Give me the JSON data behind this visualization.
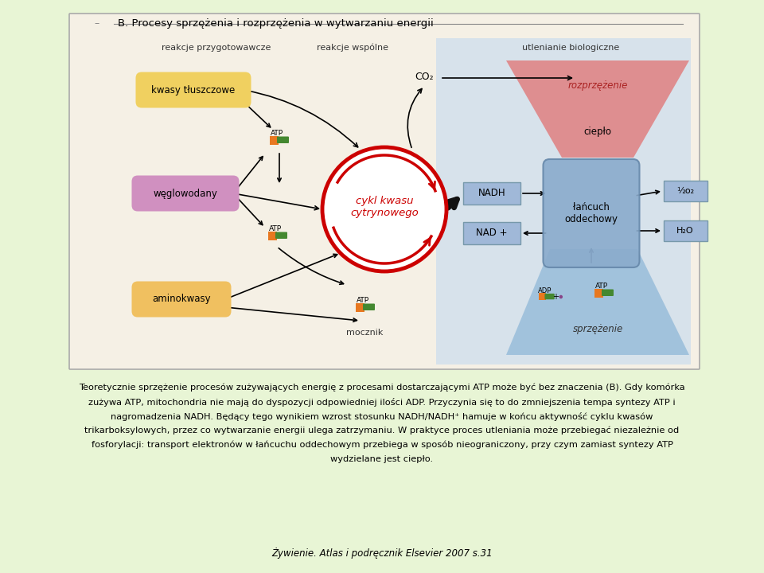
{
  "bg_color": "#e8f5d5",
  "diagram_bg": "#f5f0e8",
  "diagram_border": "#999999",
  "title_text": "B. Procesy sprzężenia i rozprzężenia w wytwarzaniu energii",
  "col1_label": "reakcje przygotowawcze",
  "col2_label": "reakcje wspólne",
  "col3_label": "utlenianie biologiczne",
  "box_kwasy": "kwasy tłuszczowe",
  "box_weglowodany": "węglowodany",
  "box_aminokwasy": "aminokwasy",
  "box_cykl": "cykl kwasu\ncytrynowego",
  "box_nadh": "NADH",
  "box_nad": "NAD +",
  "box_lancuch": "łańcuch\noddechowy",
  "box_o2": "½o₂",
  "box_h2o": "H₂O",
  "text_co2": "CO₂",
  "text_atp": "ATP",
  "text_adp": "ADP",
  "text_mocznik": "mocznik",
  "text_rozprzezenie": "rozprzężenie",
  "text_cieplo": "ciepło",
  "text_sprzezenie": "sprzężenie",
  "para_line1": "Teoretycznie sprzężenie procesów zużywających energię z procesami dostarczającymi ATP może być bez znaczenia (B). Gdy komórka",
  "para_line2": "zużywa ATP, mitochondria nie mają do dyspozycji odpowiedniej ilości ADP. Przyczynia się to do zmniejszenia tempa syntezy ATP i",
  "para_line3": "nagromadzenia NADH. Będący tego wynikiem wzrost stosunku NADH/NADH⁺ hamuje w końcu aktywność cyklu kwasów",
  "para_line4": "trikarboksylowych, przez co wytwarzanie energii ulega zatrzymaniu. W praktyce proces utleniania może przebiegać niezależnie od",
  "para_line5": "fosforylacji: transport elektronów w łańcuchu oddechowym przebiega w sposób nieograniczony, przy czym zamiast syntezy ATP",
  "para_line6": "wydzielane jest ciepło.",
  "footer_text": "Żywienie. Atlas i podręcznik Elsevier 2007 s.31",
  "kwasy_color": "#f0d060",
  "weglowodany_color": "#d090c0",
  "aminokwasy_color": "#f0c060",
  "cykl_border": "#cc0000",
  "nadh_color": "#a0b8d8",
  "nad_color": "#a0b8d8",
  "lancuch_color": "#8aabcc",
  "o2_color": "#a0b8d8",
  "h2o_color": "#a0b8d8",
  "rozprzezenie_color_top": "#e08080",
  "rozprzezenie_color_bot": "#f0b0a0",
  "sprzezenie_color": "#90b8d8",
  "right_bg": "#c0d8f0",
  "orange_color": "#e87820",
  "green_color": "#448830",
  "purple_dot": "#884488"
}
